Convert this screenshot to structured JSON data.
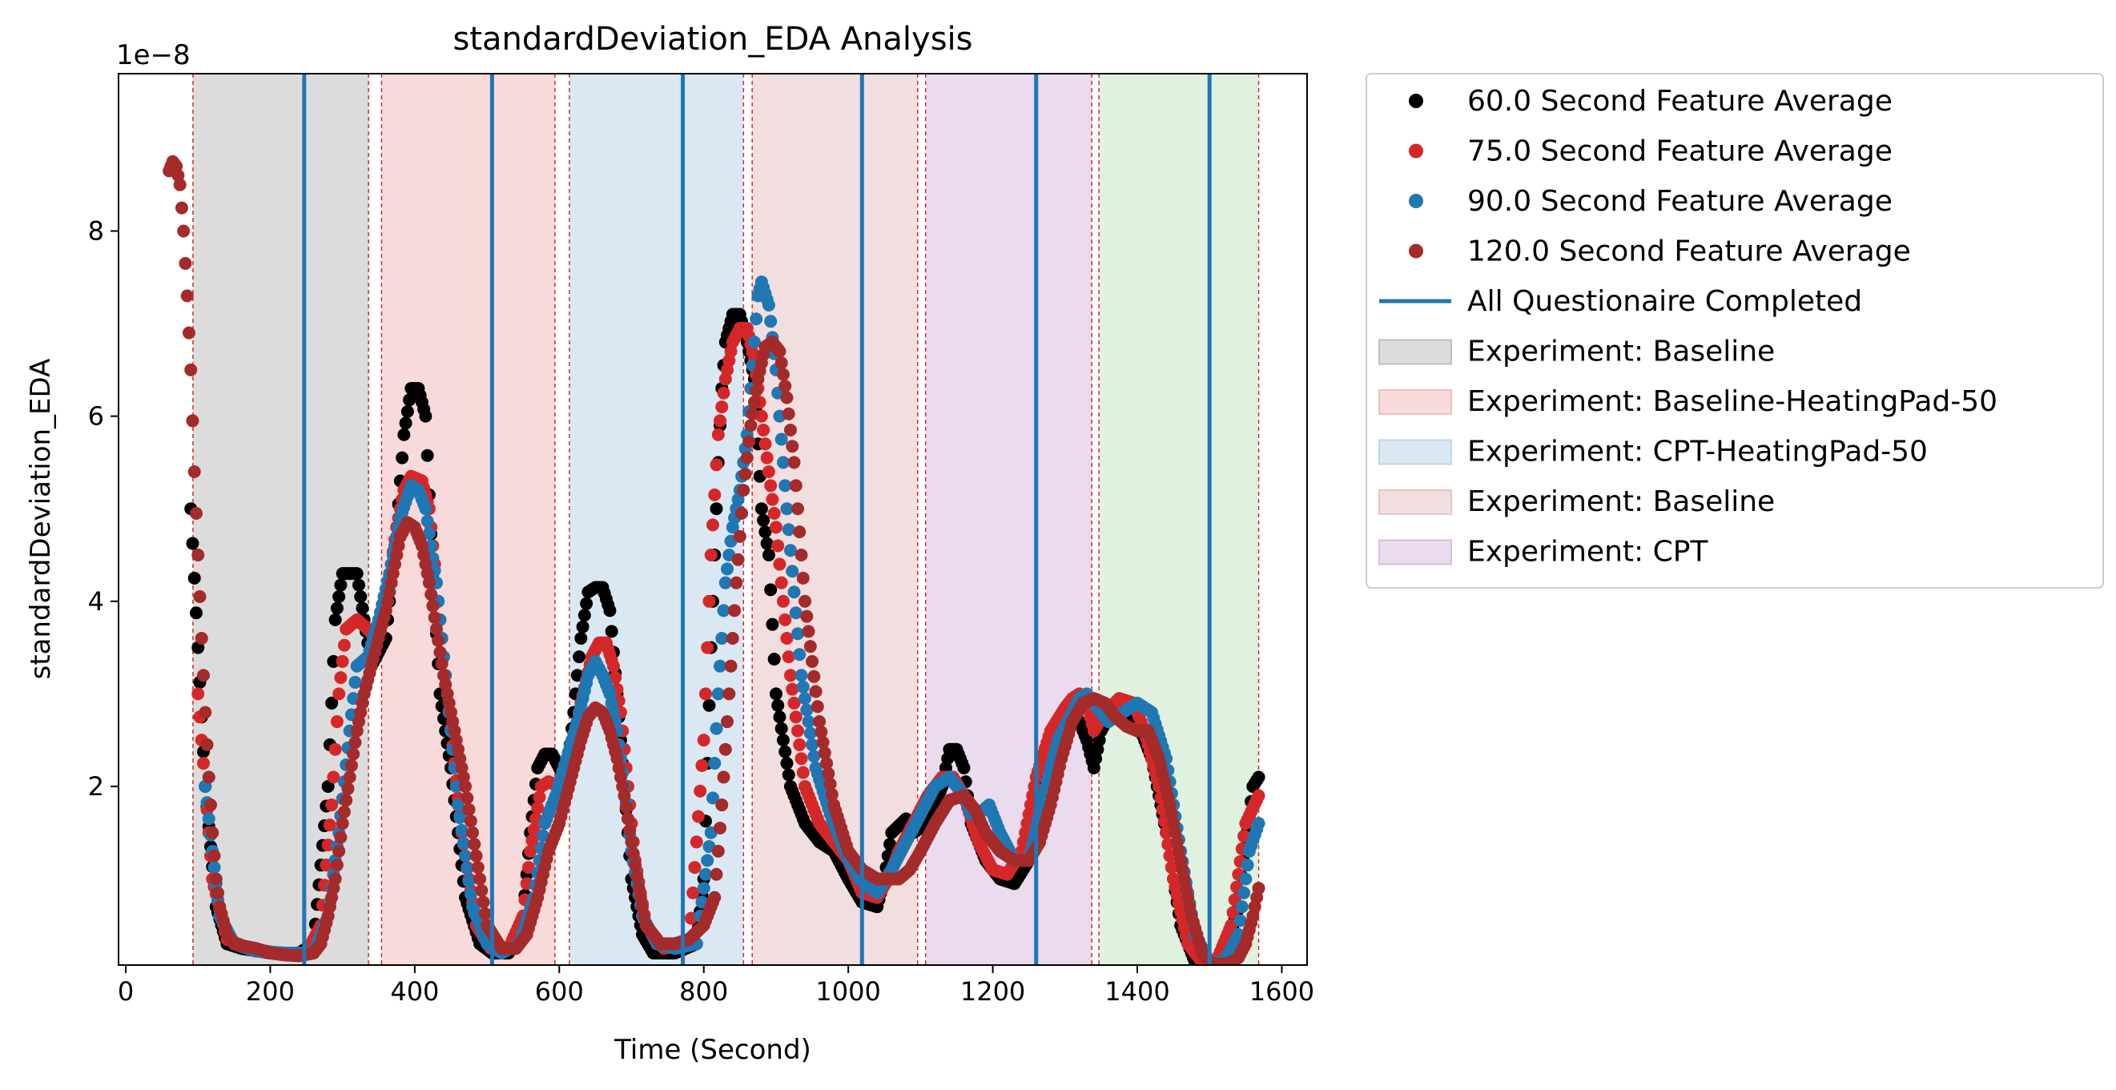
{
  "chart_data": {
    "type": "scatter",
    "title": "standardDeviation_EDA Analysis",
    "xlabel": "Time (Second)",
    "ylabel": "standardDeviation_EDA",
    "y_exponent_label": "1e−8",
    "xlim": [
      -10,
      1635
    ],
    "ylim": [
      0.07,
      9.7
    ],
    "x_ticks": [
      0,
      200,
      400,
      600,
      800,
      1000,
      1200,
      1400,
      1600
    ],
    "x_tick_labels": [
      "0",
      "200",
      "400",
      "600",
      "800",
      "1000",
      "1200",
      "1400",
      "1600"
    ],
    "y_ticks": [
      2,
      4,
      6,
      8
    ],
    "y_tick_labels": [
      "2",
      "4",
      "6",
      "8"
    ],
    "grid": false,
    "legend_position": "outside-right",
    "experiment_regions": [
      {
        "name": "Experiment: Baseline",
        "start": 93,
        "end": 336,
        "color": "#bfbfbf"
      },
      {
        "name": "Experiment: Baseline-HeatingPad-50",
        "start": 354,
        "end": 594,
        "color": "#f4bcbc"
      },
      {
        "name": "Experiment: CPT-HeatingPad-50",
        "start": 614,
        "end": 855,
        "color": "#bcd6ea"
      },
      {
        "name": "Experiment: Baseline",
        "start": 867,
        "end": 1096,
        "color": "#e6c4c4"
      },
      {
        "name": "Experiment: CPT",
        "start": 1107,
        "end": 1337,
        "color": "#d8bde0"
      },
      {
        "name": "",
        "start": 1347,
        "end": 1568,
        "color": "#c6e6c6"
      }
    ],
    "region_boundaries": [
      93,
      336,
      354,
      594,
      614,
      855,
      867,
      1096,
      1107,
      1337,
      1347,
      1568
    ],
    "questionnaire_completed": [
      247,
      507,
      771,
      1019,
      1260,
      1500
    ],
    "questionnaire_color": "#1f77b4",
    "series": [
      {
        "name": "60.0 Second Feature Average",
        "color": "#000000",
        "x": [
          90,
          110,
          125,
          140,
          160,
          200,
          240,
          260,
          280,
          290,
          300,
          320,
          330,
          340,
          360,
          375,
          385,
          395,
          405,
          415,
          425,
          435,
          450,
          470,
          490,
          507,
          530,
          550,
          560,
          570,
          580,
          590,
          600,
          610,
          620,
          630,
          640,
          650,
          660,
          670,
          680,
          690,
          700,
          715,
          730,
          760,
          790,
          800,
          810,
          820,
          825,
          830,
          840,
          850,
          860,
          870,
          880,
          890,
          900,
          920,
          940,
          960,
          980,
          1000,
          1019,
          1040,
          1050,
          1060,
          1080,
          1090,
          1110,
          1130,
          1140,
          1150,
          1160,
          1170,
          1190,
          1210,
          1230,
          1250,
          1270,
          1290,
          1300,
          1310,
          1320,
          1330,
          1340,
          1350,
          1370,
          1400,
          1420,
          1440,
          1460,
          1480,
          1500,
          1520,
          1540,
          1560,
          1568
        ],
        "y": [
          5.0,
          2.0,
          0.7,
          0.3,
          0.25,
          0.2,
          0.2,
          0.3,
          2.0,
          3.8,
          4.3,
          4.3,
          3.8,
          3.3,
          3.6,
          4.8,
          5.8,
          6.3,
          6.3,
          6.0,
          4.3,
          3.0,
          2.2,
          0.8,
          0.3,
          0.2,
          0.2,
          0.6,
          1.5,
          2.2,
          2.35,
          2.35,
          2.2,
          2.1,
          2.8,
          3.6,
          4.1,
          4.15,
          4.15,
          3.9,
          3.0,
          2.0,
          1.0,
          0.4,
          0.2,
          0.2,
          0.3,
          1.0,
          3.5,
          5.5,
          6.3,
          6.8,
          7.1,
          7.1,
          6.8,
          6.4,
          5.0,
          4.5,
          3.0,
          2.0,
          1.6,
          1.4,
          1.3,
          1.0,
          0.75,
          0.7,
          1.0,
          1.5,
          1.65,
          1.5,
          1.6,
          2.0,
          2.4,
          2.4,
          2.2,
          1.6,
          1.2,
          1.0,
          0.95,
          1.2,
          2.0,
          2.7,
          2.75,
          2.75,
          2.7,
          2.5,
          2.2,
          2.6,
          2.9,
          2.7,
          2.3,
          1.5,
          0.5,
          0.1,
          0.08,
          0.15,
          0.7,
          2.0,
          2.1
        ]
      },
      {
        "name": "75.0 Second Feature Average",
        "color": "#d62728",
        "x": [
          100,
          120,
          140,
          170,
          210,
          250,
          270,
          285,
          295,
          305,
          320,
          335,
          345,
          360,
          375,
          385,
          395,
          410,
          420,
          430,
          445,
          465,
          485,
          505,
          530,
          550,
          560,
          575,
          585,
          600,
          615,
          630,
          645,
          655,
          665,
          675,
          685,
          695,
          705,
          720,
          745,
          780,
          800,
          810,
          820,
          830,
          840,
          850,
          860,
          870,
          880,
          900,
          920,
          940,
          960,
          980,
          1000,
          1019,
          1040,
          1055,
          1070,
          1090,
          1110,
          1130,
          1145,
          1160,
          1180,
          1200,
          1220,
          1240,
          1260,
          1280,
          1300,
          1310,
          1320,
          1330,
          1340,
          1355,
          1375,
          1395,
          1410,
          1430,
          1450,
          1470,
          1490,
          1510,
          1530,
          1550,
          1568
        ],
        "y": [
          3.0,
          1.0,
          0.35,
          0.25,
          0.2,
          0.2,
          0.5,
          1.8,
          3.0,
          3.7,
          3.8,
          3.7,
          3.6,
          4.0,
          4.8,
          5.2,
          5.35,
          5.3,
          5.0,
          4.2,
          3.0,
          1.5,
          0.5,
          0.25,
          0.25,
          0.6,
          1.3,
          2.0,
          2.05,
          2.0,
          2.3,
          2.9,
          3.4,
          3.55,
          3.55,
          3.3,
          2.8,
          2.0,
          1.2,
          0.5,
          0.25,
          0.3,
          2.5,
          4.5,
          5.8,
          6.4,
          6.8,
          6.95,
          6.95,
          6.6,
          6.0,
          4.8,
          3.2,
          2.0,
          1.6,
          1.4,
          1.2,
          0.85,
          0.8,
          1.0,
          1.3,
          1.6,
          1.9,
          2.1,
          2.1,
          1.9,
          1.4,
          1.1,
          1.05,
          1.3,
          2.1,
          2.6,
          2.85,
          2.95,
          3.0,
          2.9,
          2.6,
          2.8,
          2.95,
          2.9,
          2.6,
          2.0,
          1.0,
          0.3,
          0.1,
          0.12,
          0.5,
          1.6,
          1.9
        ]
      },
      {
        "name": "90.0 Second Feature Average",
        "color": "#1f77b4",
        "x": [
          110,
          130,
          150,
          180,
          220,
          260,
          280,
          295,
          310,
          320,
          335,
          350,
          365,
          380,
          395,
          405,
          415,
          430,
          445,
          460,
          480,
          500,
          520,
          545,
          565,
          580,
          595,
          610,
          625,
          640,
          650,
          660,
          670,
          680,
          690,
          700,
          715,
          735,
          760,
          790,
          810,
          820,
          830,
          840,
          850,
          860,
          870,
          875,
          880,
          890,
          900,
          915,
          935,
          955,
          975,
          995,
          1015,
          1040,
          1060,
          1080,
          1100,
          1120,
          1140,
          1160,
          1170,
          1180,
          1195,
          1210,
          1230,
          1250,
          1270,
          1290,
          1310,
          1320,
          1330,
          1340,
          1360,
          1380,
          1400,
          1420,
          1440,
          1460,
          1480,
          1500,
          1520,
          1540,
          1555,
          1568
        ],
        "y": [
          2.0,
          0.6,
          0.3,
          0.22,
          0.2,
          0.2,
          0.6,
          1.5,
          2.6,
          3.3,
          3.4,
          3.8,
          4.3,
          4.9,
          5.25,
          5.2,
          5.0,
          4.2,
          3.0,
          1.8,
          0.7,
          0.3,
          0.2,
          0.3,
          0.8,
          1.6,
          1.9,
          2.3,
          2.7,
          3.2,
          3.35,
          3.2,
          3.0,
          2.6,
          2.0,
          1.3,
          0.6,
          0.3,
          0.25,
          0.3,
          1.5,
          3.0,
          4.2,
          4.8,
          5.2,
          5.8,
          6.8,
          7.3,
          7.45,
          7.2,
          6.5,
          5.0,
          3.2,
          2.2,
          1.7,
          1.3,
          1.0,
          0.85,
          1.1,
          1.4,
          1.7,
          2.0,
          2.1,
          1.9,
          1.7,
          1.7,
          1.8,
          1.5,
          1.2,
          1.2,
          1.9,
          2.5,
          2.8,
          2.95,
          3.0,
          2.9,
          2.7,
          2.8,
          2.9,
          2.8,
          2.3,
          1.3,
          0.4,
          0.1,
          0.1,
          0.4,
          1.3,
          1.6
        ]
      },
      {
        "name": "120.0 Second Feature Average",
        "color": "#a52a2a",
        "x": [
          60,
          65,
          70,
          75,
          80,
          85,
          90,
          95,
          100,
          105,
          110,
          115,
          120,
          125,
          130,
          140,
          150,
          160,
          180,
          200,
          220,
          240,
          260,
          270,
          280,
          290,
          300,
          310,
          320,
          330,
          340,
          350,
          360,
          370,
          380,
          390,
          400,
          410,
          420,
          430,
          440,
          450,
          460,
          470,
          480,
          490,
          500,
          520,
          540,
          555,
          570,
          585,
          600,
          610,
          620,
          630,
          640,
          650,
          660,
          670,
          680,
          690,
          700,
          710,
          720,
          740,
          760,
          780,
          800,
          815,
          825,
          835,
          845,
          855,
          865,
          875,
          885,
          895,
          905,
          915,
          925,
          940,
          960,
          980,
          1000,
          1019,
          1040,
          1060,
          1070,
          1085,
          1100,
          1120,
          1140,
          1160,
          1175,
          1190,
          1210,
          1230,
          1250,
          1265,
          1280,
          1295,
          1310,
          1325,
          1340,
          1355,
          1370,
          1385,
          1400,
          1415,
          1430,
          1445,
          1460,
          1475,
          1490,
          1500,
          1510,
          1520,
          1530,
          1540,
          1550,
          1560,
          1568
        ],
        "y": [
          8.65,
          8.75,
          8.7,
          8.5,
          8.0,
          7.3,
          6.5,
          5.4,
          4.5,
          3.6,
          2.8,
          2.1,
          1.5,
          1.0,
          0.7,
          0.4,
          0.3,
          0.28,
          0.25,
          0.2,
          0.18,
          0.17,
          0.2,
          0.3,
          0.6,
          1.0,
          1.6,
          2.1,
          2.6,
          3.0,
          3.3,
          3.6,
          3.9,
          4.3,
          4.7,
          4.85,
          4.8,
          4.6,
          4.2,
          3.7,
          3.2,
          2.8,
          2.4,
          2.0,
          1.5,
          1.0,
          0.5,
          0.25,
          0.25,
          0.4,
          0.8,
          1.3,
          1.6,
          1.9,
          2.2,
          2.5,
          2.75,
          2.85,
          2.8,
          2.6,
          2.3,
          1.9,
          1.4,
          0.9,
          0.5,
          0.3,
          0.3,
          0.35,
          0.5,
          0.8,
          1.8,
          3.0,
          4.2,
          5.2,
          5.9,
          6.4,
          6.75,
          6.8,
          6.7,
          6.2,
          5.5,
          4.0,
          2.7,
          1.8,
          1.3,
          1.1,
          1.0,
          1.0,
          1.0,
          1.1,
          1.3,
          1.6,
          1.85,
          1.9,
          1.75,
          1.5,
          1.3,
          1.2,
          1.2,
          1.4,
          1.8,
          2.3,
          2.7,
          2.9,
          2.95,
          2.9,
          2.75,
          2.65,
          2.6,
          2.6,
          2.3,
          1.8,
          1.2,
          0.6,
          0.2,
          0.1,
          0.08,
          0.08,
          0.1,
          0.15,
          0.3,
          0.6,
          0.9
        ]
      }
    ],
    "legend_entries": [
      {
        "label": "60.0 Second Feature Average",
        "kind": "marker",
        "color": "#000000"
      },
      {
        "label": "75.0 Second Feature Average",
        "kind": "marker",
        "color": "#d62728"
      },
      {
        "label": "90.0 Second Feature Average",
        "kind": "marker",
        "color": "#1f77b4"
      },
      {
        "label": "120.0 Second Feature Average",
        "kind": "marker",
        "color": "#a52a2a"
      },
      {
        "label": "All Questionaire Completed",
        "kind": "line",
        "color": "#1f77b4"
      },
      {
        "label": "Experiment: Baseline",
        "kind": "patch",
        "color": "#bfbfbf"
      },
      {
        "label": "Experiment: Baseline-HeatingPad-50",
        "kind": "patch",
        "color": "#f4bcbc"
      },
      {
        "label": "Experiment: CPT-HeatingPad-50",
        "kind": "patch",
        "color": "#bcd6ea"
      },
      {
        "label": "Experiment: Baseline",
        "kind": "patch",
        "color": "#e6c4c4"
      },
      {
        "label": "Experiment: CPT",
        "kind": "patch",
        "color": "#d8bde0"
      }
    ]
  }
}
